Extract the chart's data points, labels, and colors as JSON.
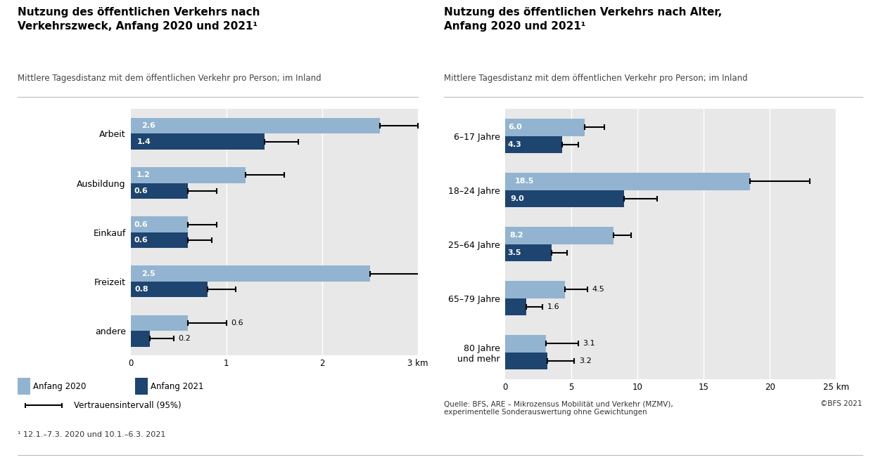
{
  "left": {
    "title": "Nutzung des öffentlichen Verkehrs nach\nVerkehrszweck, Anfang 2020 und 2021¹",
    "subtitle": "Mittlere Tagesdistanz mit dem öffentlichen Verkehr pro Person; im Inland",
    "categories": [
      "Arbeit",
      "Ausbildung",
      "Einkauf",
      "Freizeit",
      "andere"
    ],
    "values_2020": [
      2.6,
      1.2,
      0.6,
      2.5,
      0.6
    ],
    "values_2021": [
      1.4,
      0.6,
      0.6,
      0.8,
      0.2
    ],
    "ci_2020_upper": [
      3.0,
      1.6,
      0.9,
      3.05,
      1.0
    ],
    "ci_2021_upper": [
      1.75,
      0.9,
      0.85,
      1.1,
      0.45
    ],
    "outside_labels_2020": [
      null,
      null,
      null,
      null,
      "0.6"
    ],
    "outside_labels_2021": [
      null,
      null,
      null,
      null,
      "0.2"
    ],
    "xlim": [
      0,
      3
    ],
    "xticks": [
      0,
      1,
      2,
      3
    ]
  },
  "right": {
    "title": "Nutzung des öffentlichen Verkehrs nach Alter,\nAnfang 2020 und 2021¹",
    "subtitle": "Mittlere Tagesdistanz mit dem öffentlichen Verkehr pro Person; im Inland",
    "categories": [
      "6–17 Jahre",
      "18–24 Jahre",
      "25–64 Jahre",
      "65–79 Jahre",
      "80 Jahre\nund mehr"
    ],
    "values_2020": [
      6.0,
      18.5,
      8.2,
      4.5,
      3.1
    ],
    "values_2021": [
      4.3,
      9.0,
      3.5,
      1.6,
      3.2
    ],
    "ci_2020_upper": [
      7.5,
      23.0,
      9.5,
      6.2,
      5.5
    ],
    "ci_2021_upper": [
      5.5,
      11.5,
      4.7,
      2.8,
      5.2
    ],
    "outside_labels_2020": [
      null,
      null,
      null,
      "4.5",
      "3.1"
    ],
    "outside_labels_2021": [
      null,
      null,
      null,
      "1.6",
      "3.2"
    ],
    "xlim": [
      0,
      25
    ],
    "xticks": [
      0,
      5,
      10,
      15,
      20,
      25
    ]
  },
  "color_2020": "#92B4D0",
  "color_2021": "#1E4470",
  "bar_height": 0.32,
  "legend_2020": "Anfang 2020",
  "legend_2021": "Anfang 2021",
  "footnote": "¹ 12.1.–7.3. 2020 und 10.1.–6.3. 2021",
  "source": "Quelle: BFS, ARE – Mikrozensus Mobilität und Verkehr (MZMV),\nexperimentelle Sonderauswertung ohne Gewichtungen",
  "copyright": "©BFS 2021",
  "ci_legend": "Vertrauensintervall (95%)"
}
